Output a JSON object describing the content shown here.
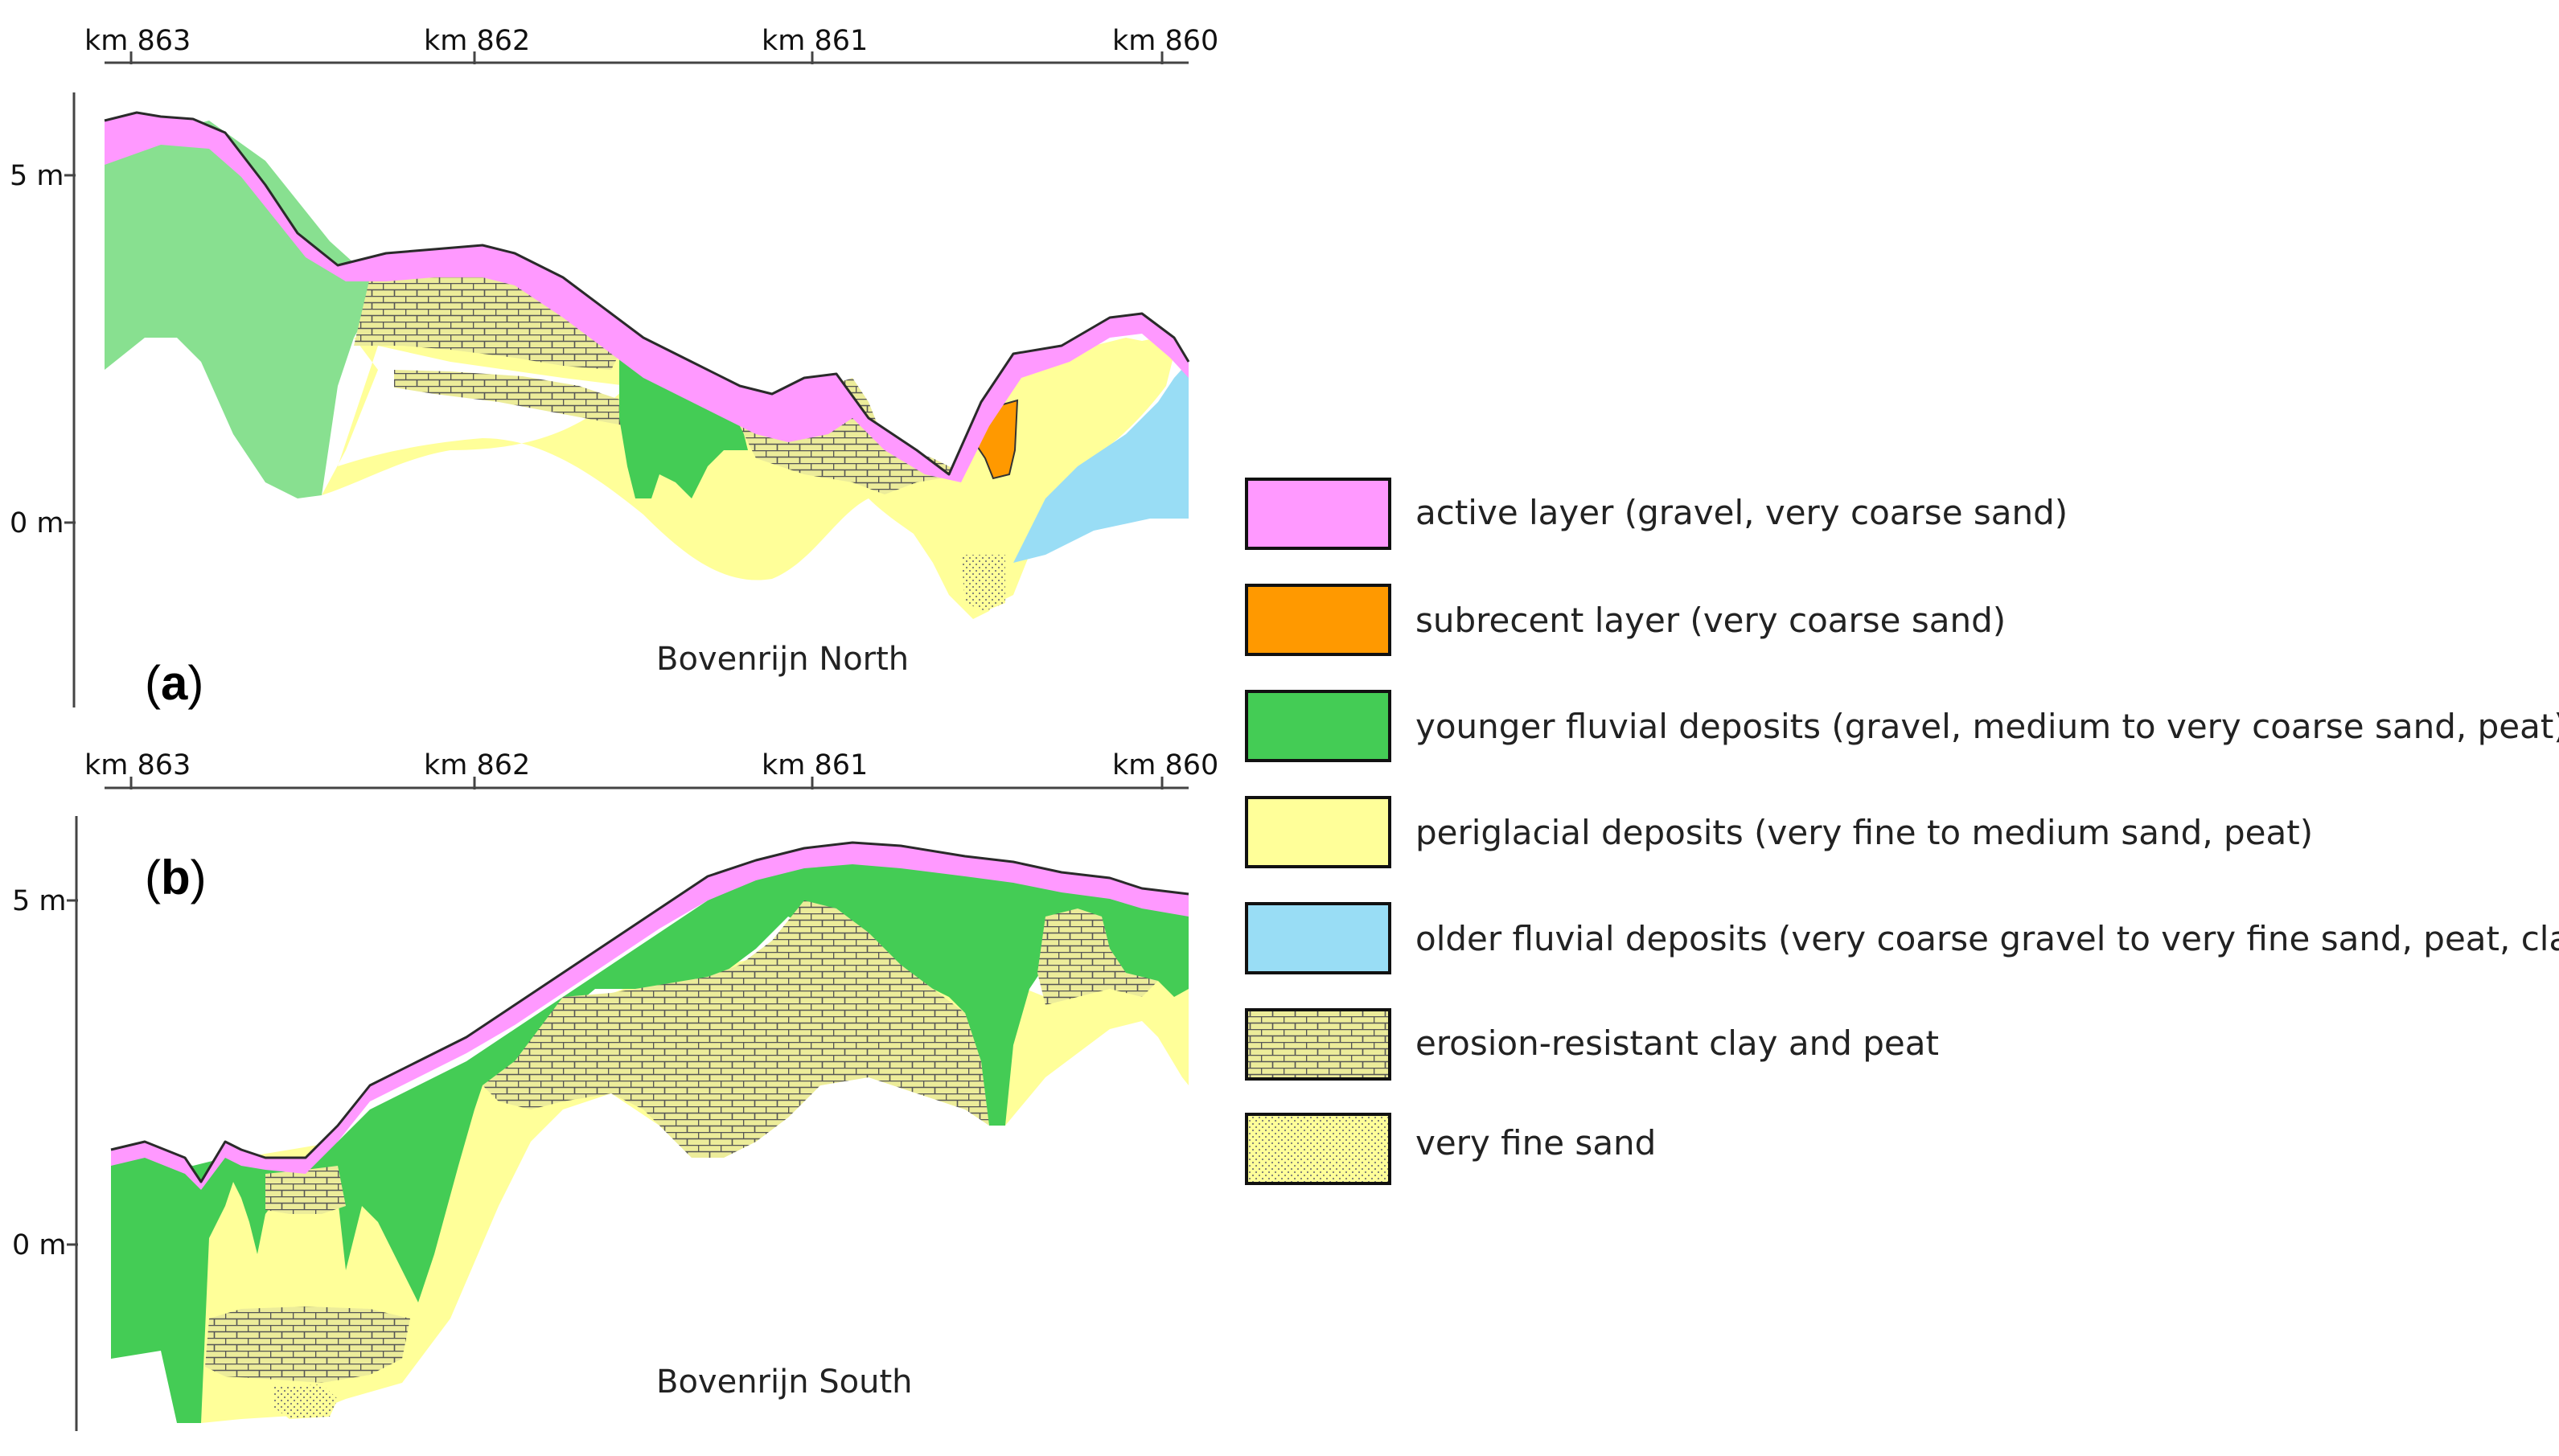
{
  "panels": [
    {
      "letter": "a",
      "name": "Bovenrijn North",
      "km_ticks": [
        "km 863",
        "km 862",
        "km 861",
        "km 860"
      ],
      "depth_ticks": [
        "5 m",
        "0 m"
      ]
    },
    {
      "letter": "b",
      "name": "Bovenrijn South",
      "km_ticks": [
        "km 863",
        "km 862",
        "km 861",
        "km 860"
      ],
      "depth_ticks": [
        "5 m",
        "0 m"
      ]
    }
  ],
  "legend": [
    {
      "label": "active layer (gravel, very coarse sand)",
      "color": "#ff99ff",
      "pattern": "none"
    },
    {
      "label": "subrecent layer (very coarse sand)",
      "color": "#ff9900",
      "pattern": "none"
    },
    {
      "label": "younger fluvial deposits (gravel, medium to very coarse sand, peat)",
      "color": "#44cc55",
      "pattern": "none"
    },
    {
      "label": "periglacial deposits (very fine to medium sand, peat)",
      "color": "#ffff99",
      "pattern": "none"
    },
    {
      "label": "older fluvial deposits (very coarse gravel to very fine sand, peat, clay)",
      "color": "#99ddf5",
      "pattern": "none"
    },
    {
      "label": "erosion-resistant clay and peat",
      "color": "#ecec9a",
      "pattern": "brick"
    },
    {
      "label": "very fine sand",
      "color": "#ffff99",
      "pattern": "dots"
    }
  ]
}
